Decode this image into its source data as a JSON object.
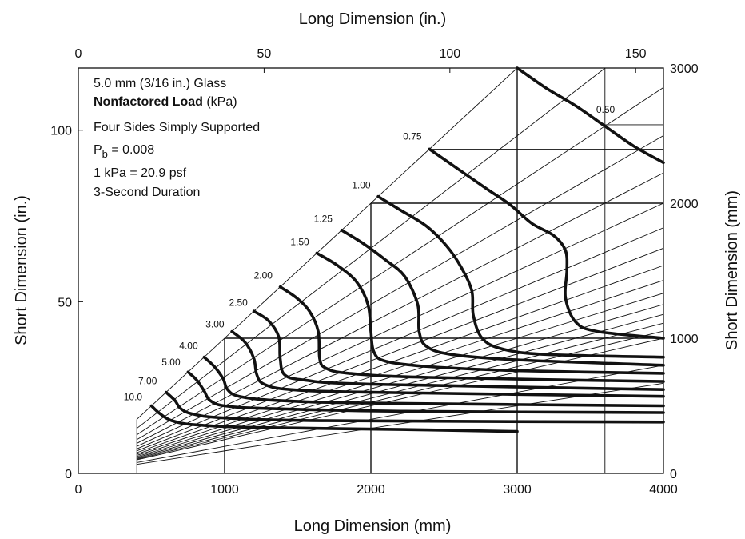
{
  "chart_data": {
    "type": "line",
    "xlabel_bottom": "Long Dimension (mm)",
    "xlabel_top": "Long Dimension (in.)",
    "ylabel_left": "Short Dimension (in.)",
    "ylabel_right": "Short Dimension (mm)",
    "xlim_mm": [
      0,
      4000
    ],
    "ylim_mm": [
      0,
      3000
    ],
    "xticks_bottom": [
      "0",
      "1000",
      "2000",
      "3000",
      "4000"
    ],
    "xticks_top": [
      "0",
      "50",
      "100",
      "150"
    ],
    "yticks_left": [
      "0",
      "50",
      "100"
    ],
    "yticks_right": [
      "0",
      "1000",
      "2000",
      "3000"
    ],
    "annotations": {
      "line1": "5.0 mm (3/16 in.) Glass",
      "line2_bold": "Nonfactored Load",
      "line2_rest": " (kPa)",
      "line3": "Four Sides Simply Supported",
      "line4_main": "P",
      "line4_sub": "b",
      "line4_rest": " = 0.008",
      "line5": "1 kPa = 20.9 psf",
      "line6": "3-Second Duration"
    },
    "series": [
      {
        "name": "0.50",
        "points": [
          [
            3000,
            3000
          ],
          [
            3200,
            2850
          ],
          [
            3400,
            2720
          ],
          [
            3600,
            2570
          ],
          [
            3800,
            2420
          ],
          [
            4000,
            2300
          ]
        ]
      },
      {
        "name": "0.75",
        "points": [
          [
            2400,
            2400
          ],
          [
            2600,
            2250
          ],
          [
            2800,
            2100
          ],
          [
            2950,
            1990
          ],
          [
            3100,
            1850
          ],
          [
            3250,
            1760
          ],
          [
            3330,
            1650
          ],
          [
            3340,
            1500
          ],
          [
            3330,
            1300
          ],
          [
            3400,
            1120
          ],
          [
            3550,
            1050
          ],
          [
            4000,
            1000
          ]
        ]
      },
      {
        "name": "1.00",
        "points": [
          [
            2050,
            2050
          ],
          [
            2200,
            1950
          ],
          [
            2380,
            1830
          ],
          [
            2520,
            1680
          ],
          [
            2620,
            1520
          ],
          [
            2690,
            1350
          ],
          [
            2700,
            1170
          ],
          [
            2760,
            1000
          ],
          [
            2900,
            920
          ],
          [
            3200,
            880
          ],
          [
            4000,
            860
          ]
        ]
      },
      {
        "name": "1.25",
        "points": [
          [
            1800,
            1800
          ],
          [
            1950,
            1700
          ],
          [
            2100,
            1580
          ],
          [
            2230,
            1460
          ],
          [
            2320,
            1250
          ],
          [
            2330,
            1050
          ],
          [
            2380,
            940
          ],
          [
            2550,
            880
          ],
          [
            3000,
            840
          ],
          [
            4000,
            800
          ]
        ]
      },
      {
        "name": "1.50",
        "points": [
          [
            1630,
            1630
          ],
          [
            1770,
            1540
          ],
          [
            1900,
            1420
          ],
          [
            1980,
            1250
          ],
          [
            2000,
            1050
          ],
          [
            2020,
            900
          ],
          [
            2100,
            830
          ],
          [
            2400,
            790
          ],
          [
            3000,
            760
          ],
          [
            4000,
            740
          ]
        ]
      },
      {
        "name": "2.00",
        "points": [
          [
            1380,
            1380
          ],
          [
            1490,
            1300
          ],
          [
            1580,
            1200
          ],
          [
            1640,
            1050
          ],
          [
            1650,
            850
          ],
          [
            1690,
            780
          ],
          [
            1850,
            740
          ],
          [
            2400,
            710
          ],
          [
            4000,
            680
          ]
        ]
      },
      {
        "name": "2.50",
        "points": [
          [
            1200,
            1200
          ],
          [
            1300,
            1130
          ],
          [
            1370,
            1010
          ],
          [
            1380,
            850
          ],
          [
            1410,
            730
          ],
          [
            1550,
            690
          ],
          [
            2000,
            660
          ],
          [
            4000,
            620
          ]
        ]
      },
      {
        "name": "3.00",
        "points": [
          [
            1050,
            1050
          ],
          [
            1140,
            970
          ],
          [
            1200,
            850
          ],
          [
            1220,
            730
          ],
          [
            1270,
            660
          ],
          [
            1450,
            620
          ],
          [
            2000,
            600
          ],
          [
            4000,
            570
          ]
        ]
      },
      {
        "name": "4.00",
        "points": [
          [
            860,
            860
          ],
          [
            930,
            790
          ],
          [
            990,
            700
          ],
          [
            1020,
            620
          ],
          [
            1100,
            570
          ],
          [
            1350,
            540
          ],
          [
            2000,
            520
          ],
          [
            4000,
            500
          ]
        ]
      },
      {
        "name": "5.00",
        "points": [
          [
            750,
            750
          ],
          [
            810,
            690
          ],
          [
            860,
            610
          ],
          [
            900,
            540
          ],
          [
            1000,
            500
          ],
          [
            1300,
            480
          ],
          [
            2200,
            460
          ],
          [
            4000,
            450
          ]
        ]
      },
      {
        "name": "7.00",
        "points": [
          [
            600,
            600
          ],
          [
            660,
            540
          ],
          [
            700,
            480
          ],
          [
            780,
            440
          ],
          [
            1000,
            410
          ],
          [
            1700,
            390
          ],
          [
            4000,
            380
          ]
        ]
      },
      {
        "name": "10.0",
        "points": [
          [
            500,
            500
          ],
          [
            560,
            440
          ],
          [
            640,
            390
          ],
          [
            800,
            360
          ],
          [
            1200,
            340
          ],
          [
            2200,
            325
          ],
          [
            3000,
            310
          ]
        ]
      }
    ],
    "label_positions_mm": {
      "0.50": [
        3540,
        2670
      ],
      "0.75": [
        2220,
        2470
      ],
      "1.00": [
        1870,
        2110
      ],
      "1.25": [
        1610,
        1860
      ],
      "1.50": [
        1450,
        1690
      ],
      "2.00": [
        1200,
        1440
      ],
      "2.50": [
        1030,
        1240
      ],
      "3.00": [
        870,
        1080
      ],
      "4.00": [
        690,
        920
      ],
      "5.00": [
        570,
        800
      ],
      "7.00": [
        410,
        660
      ],
      "10.0": [
        310,
        540
      ]
    },
    "aspect_ratio_slopes": [
      1,
      0.833,
      0.714,
      0.625,
      0.556,
      0.5,
      0.4545,
      0.4167,
      0.3846,
      0.3571,
      0.3333,
      0.3125,
      0.2941,
      0.2778,
      0.2632,
      0.25,
      0.2,
      0.1667
    ],
    "reference_lines_mm": {
      "vertical": [
        1000,
        2000,
        3000,
        3600
      ],
      "horizontal": [
        {
          "y": 1000,
          "from": 1000
        },
        {
          "y": 2000,
          "from": 2000
        },
        {
          "y": 2400,
          "from": 2400
        },
        {
          "y": 2580,
          "from": 3600
        }
      ]
    },
    "grid": false
  }
}
